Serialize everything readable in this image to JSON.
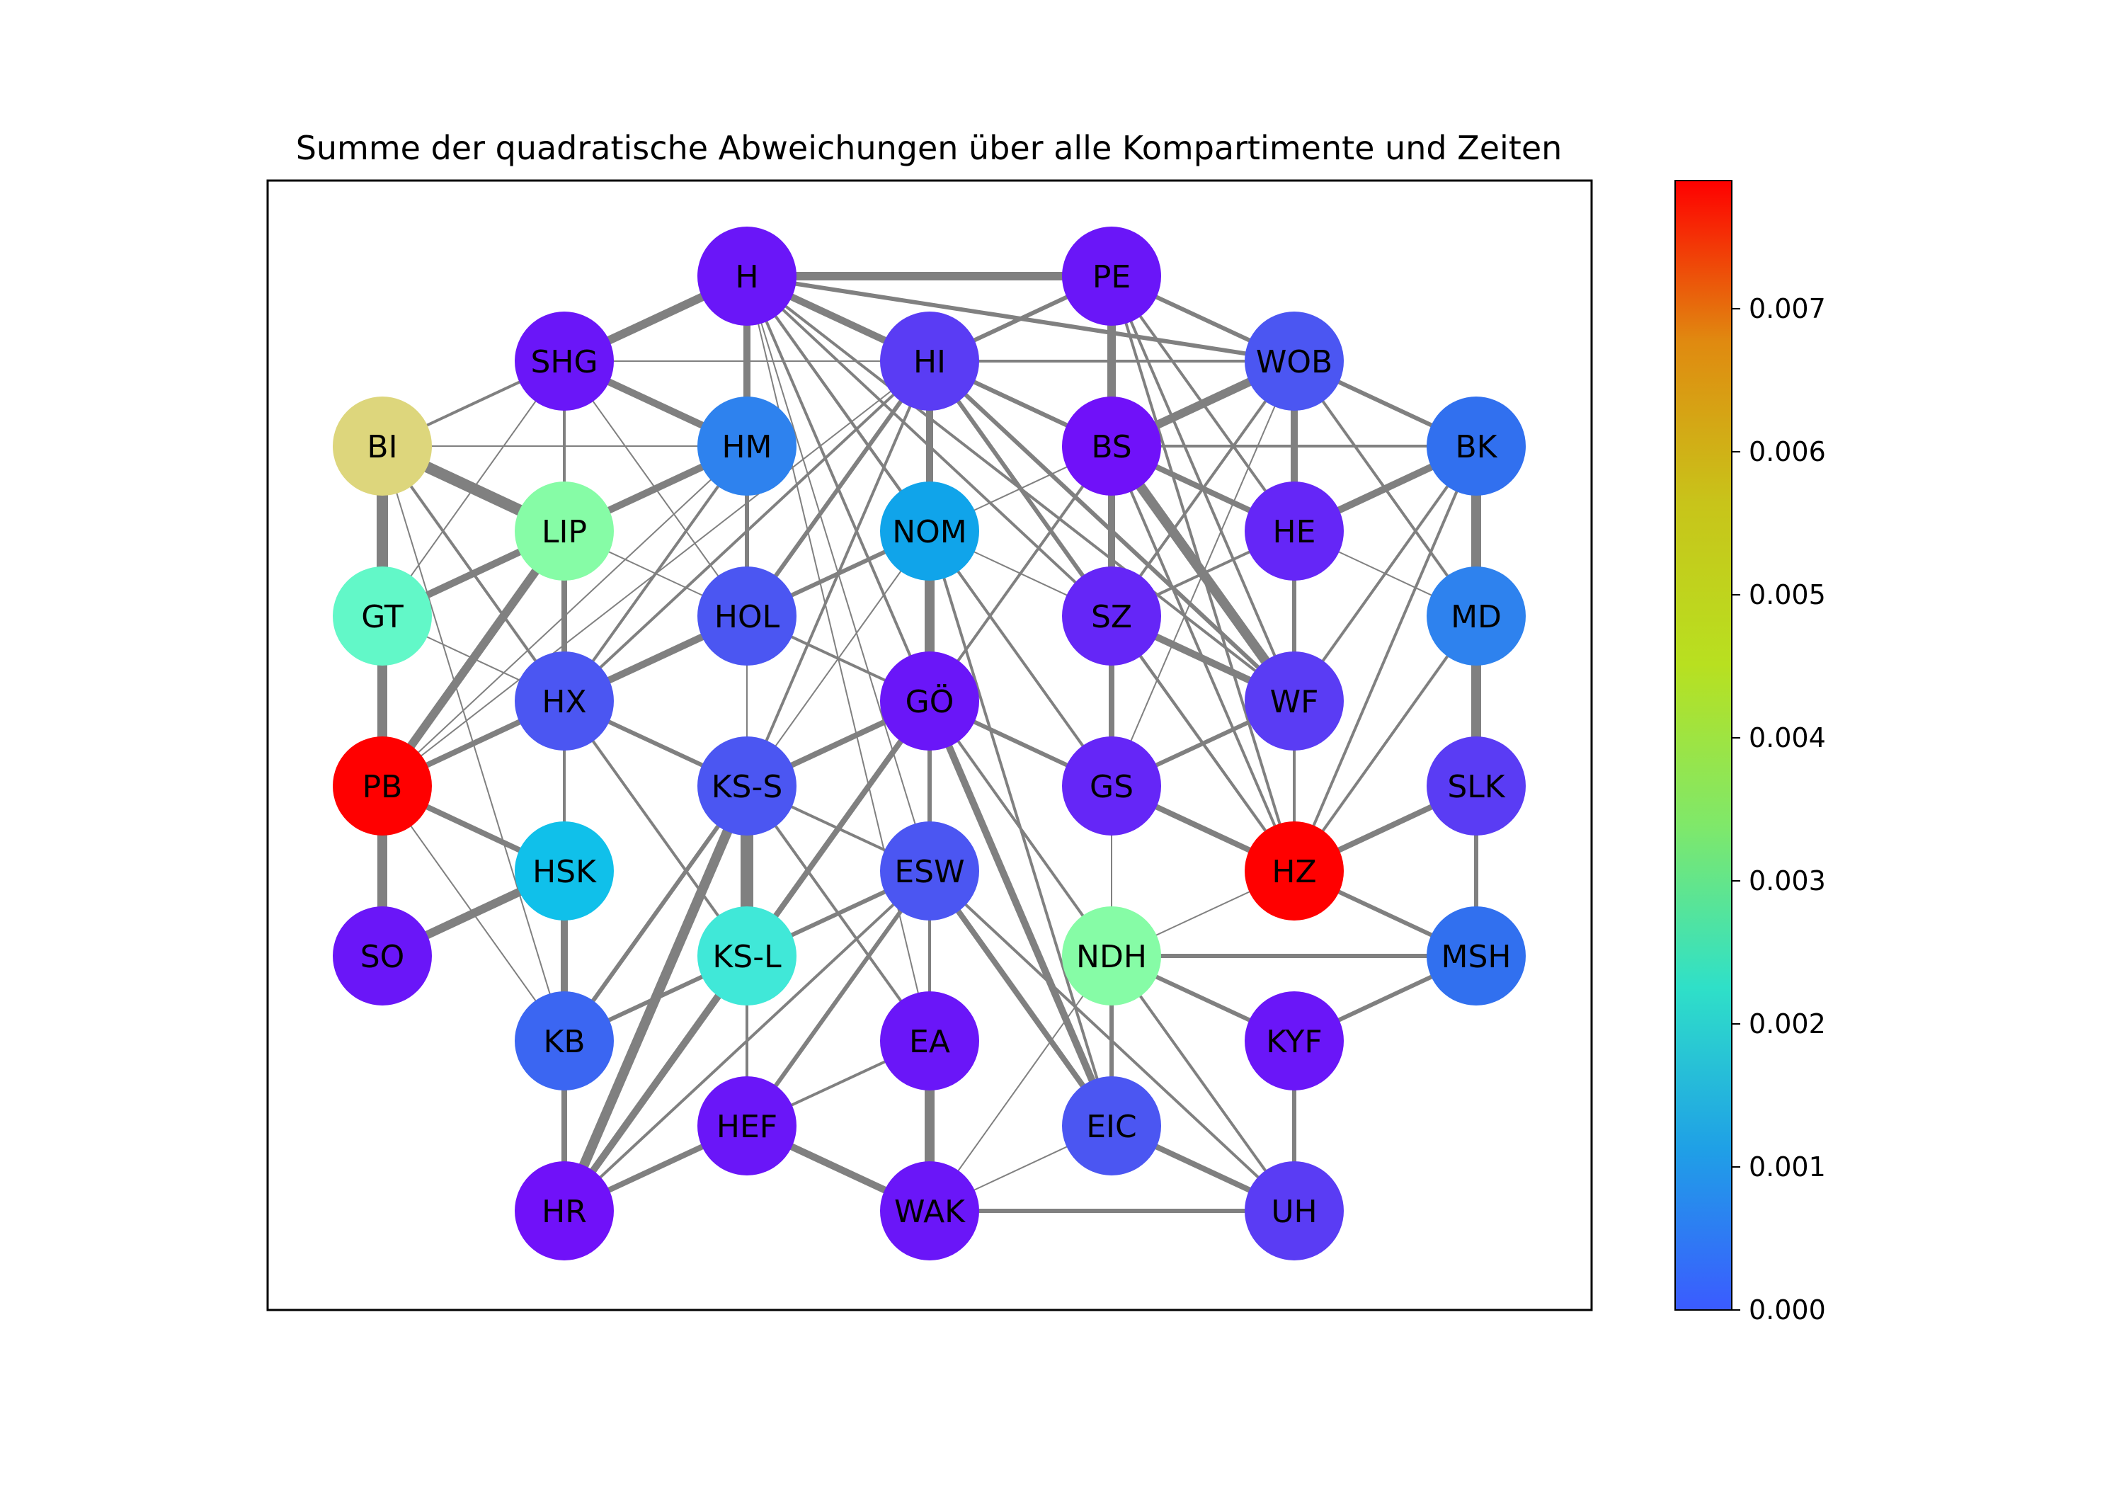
{
  "title": "Summe der quadratische Abweichungen über alle Kompartimente und Zeiten",
  "colorbar": {
    "ticks": [
      "0.000",
      "0.001",
      "0.002",
      "0.003",
      "0.004",
      "0.005",
      "0.006",
      "0.007"
    ],
    "colors": [
      "#3b5bff",
      "#1fa0e6",
      "#2fe0c8",
      "#7fe86a",
      "#b8e020",
      "#c8c41a",
      "#e08a10",
      "#ff0000"
    ]
  },
  "nodes": [
    {
      "id": "H",
      "color": "#6a16f8"
    },
    {
      "id": "PE",
      "color": "#6a16f8"
    },
    {
      "id": "SHG",
      "color": "#6a16f8"
    },
    {
      "id": "HI",
      "color": "#5a3cf4"
    },
    {
      "id": "WOB",
      "color": "#4b56f2"
    },
    {
      "id": "BI",
      "color": "#ddd67c"
    },
    {
      "id": "HM",
      "color": "#2e82ee"
    },
    {
      "id": "BS",
      "color": "#7011f9"
    },
    {
      "id": "BK",
      "color": "#3170ef"
    },
    {
      "id": "LIP",
      "color": "#86fca6"
    },
    {
      "id": "NOM",
      "color": "#10a4ea"
    },
    {
      "id": "HE",
      "color": "#6526f7"
    },
    {
      "id": "GT",
      "color": "#62f8c8"
    },
    {
      "id": "HOL",
      "color": "#4b56f2"
    },
    {
      "id": "SZ",
      "color": "#6526f7"
    },
    {
      "id": "MD",
      "color": "#2e82ee"
    },
    {
      "id": "HX",
      "color": "#4b56f2"
    },
    {
      "id": "GÖ",
      "color": "#6a16f8"
    },
    {
      "id": "WF",
      "color": "#5a3cf4"
    },
    {
      "id": "PB",
      "color": "#ff0000"
    },
    {
      "id": "KS-S",
      "color": "#4b56f2"
    },
    {
      "id": "GS",
      "color": "#6526f7"
    },
    {
      "id": "SLK",
      "color": "#5a3cf4"
    },
    {
      "id": "HSK",
      "color": "#10c0ea"
    },
    {
      "id": "ESW",
      "color": "#4b56f2"
    },
    {
      "id": "HZ",
      "color": "#ff0000"
    },
    {
      "id": "SO",
      "color": "#6a16f8"
    },
    {
      "id": "KS-L",
      "color": "#40e8d8"
    },
    {
      "id": "NDH",
      "color": "#86fca6"
    },
    {
      "id": "MSH",
      "color": "#3170ef"
    },
    {
      "id": "KB",
      "color": "#3b66f2"
    },
    {
      "id": "EA",
      "color": "#6a16f8"
    },
    {
      "id": "KYF",
      "color": "#6a16f8"
    },
    {
      "id": "HEF",
      "color": "#6a16f8"
    },
    {
      "id": "EIC",
      "color": "#4b56f2"
    },
    {
      "id": "HR",
      "color": "#7011f9"
    },
    {
      "id": "WAK",
      "color": "#6a16f8"
    },
    {
      "id": "UH",
      "color": "#5a3cf4"
    }
  ],
  "edges": [
    [
      "H",
      "PE",
      12
    ],
    [
      "H",
      "SHG",
      12
    ],
    [
      "H",
      "HM",
      10
    ],
    [
      "H",
      "HI",
      10
    ],
    [
      "H",
      "BS",
      6
    ],
    [
      "H",
      "WOB",
      6
    ],
    [
      "H",
      "SZ",
      4
    ],
    [
      "H",
      "WF",
      4
    ],
    [
      "H",
      "HE",
      4
    ],
    [
      "H",
      "GS",
      4
    ],
    [
      "H",
      "NOM",
      4
    ],
    [
      "H",
      "GÖ",
      4
    ],
    [
      "H",
      "HOL",
      2
    ],
    [
      "H",
      "ESW",
      2
    ],
    [
      "H",
      "KS-L",
      2
    ],
    [
      "H",
      "EA",
      2
    ],
    [
      "PE",
      "BS",
      12
    ],
    [
      "PE",
      "WOB",
      6
    ],
    [
      "PE",
      "HI",
      6
    ],
    [
      "PE",
      "HE",
      4
    ],
    [
      "PE",
      "WF",
      4
    ],
    [
      "PE",
      "HZ",
      4
    ],
    [
      "SHG",
      "HM",
      10
    ],
    [
      "SHG",
      "LIP",
      4
    ],
    [
      "SHG",
      "WOB",
      2
    ],
    [
      "SHG",
      "HOL",
      2
    ],
    [
      "SHG",
      "GT",
      2
    ],
    [
      "HI",
      "WOB",
      4
    ],
    [
      "HI",
      "BS",
      6
    ],
    [
      "HI",
      "SZ",
      6
    ],
    [
      "HI",
      "WF",
      6
    ],
    [
      "HI",
      "GÖ",
      10
    ],
    [
      "HI",
      "HZ",
      4
    ],
    [
      "HI",
      "HOL",
      6
    ],
    [
      "HI",
      "HX",
      4
    ],
    [
      "HI",
      "NOM",
      2
    ],
    [
      "HI",
      "KS-S",
      4
    ],
    [
      "HI",
      "PB",
      2
    ],
    [
      "WOB",
      "BS",
      12
    ],
    [
      "WOB",
      "HE",
      10
    ],
    [
      "WOB",
      "BK",
      6
    ],
    [
      "WOB",
      "MD",
      4
    ],
    [
      "WOB",
      "SZ",
      4
    ],
    [
      "WOB",
      "GS",
      2
    ],
    [
      "BI",
      "LIP",
      16
    ],
    [
      "BI",
      "GT",
      16
    ],
    [
      "BI",
      "SHG",
      4
    ],
    [
      "BI",
      "HM",
      2
    ],
    [
      "BI",
      "HX",
      4
    ],
    [
      "BI",
      "KB",
      2
    ],
    [
      "HM",
      "LIP",
      10
    ],
    [
      "HM",
      "HOL",
      6
    ],
    [
      "HM",
      "HX",
      4
    ],
    [
      "HM",
      "PB",
      2
    ],
    [
      "HM",
      "GT",
      2
    ],
    [
      "BS",
      "HE",
      8
    ],
    [
      "BS",
      "WF",
      14
    ],
    [
      "BS",
      "SZ",
      10
    ],
    [
      "BS",
      "BK",
      4
    ],
    [
      "BS",
      "GS",
      6
    ],
    [
      "BS",
      "HZ",
      4
    ],
    [
      "BS",
      "KS-L",
      4
    ],
    [
      "BK",
      "HE",
      10
    ],
    [
      "BK",
      "MD",
      14
    ],
    [
      "BK",
      "HZ",
      4
    ],
    [
      "BK",
      "WF",
      4
    ],
    [
      "LIP",
      "GT",
      10
    ],
    [
      "LIP",
      "PB",
      12
    ],
    [
      "LIP",
      "HX",
      8
    ],
    [
      "LIP",
      "HOL",
      2
    ],
    [
      "NOM",
      "GÖ",
      14
    ],
    [
      "NOM",
      "HOL",
      6
    ],
    [
      "NOM",
      "SZ",
      2
    ],
    [
      "NOM",
      "EIC",
      4
    ],
    [
      "NOM",
      "ESW",
      4
    ],
    [
      "NOM",
      "BS",
      2
    ],
    [
      "NOM",
      "KS-S",
      2
    ],
    [
      "HE",
      "WF",
      6
    ],
    [
      "HE",
      "SZ",
      4
    ],
    [
      "HE",
      "MD",
      2
    ],
    [
      "HE",
      "HZ",
      2
    ],
    [
      "GT",
      "PB",
      14
    ],
    [
      "GT",
      "HX",
      2
    ],
    [
      "HOL",
      "HX",
      10
    ],
    [
      "HOL",
      "KS-S",
      2
    ],
    [
      "HOL",
      "GÖ",
      4
    ],
    [
      "SZ",
      "GS",
      8
    ],
    [
      "SZ",
      "WF",
      10
    ],
    [
      "SZ",
      "HZ",
      4
    ],
    [
      "MD",
      "SLK",
      14
    ],
    [
      "MD",
      "HZ",
      4
    ],
    [
      "HX",
      "PB",
      8
    ],
    [
      "HX",
      "HSK",
      4
    ],
    [
      "HX",
      "KS-S",
      6
    ],
    [
      "HX",
      "KS-L",
      4
    ],
    [
      "GÖ",
      "KS-S",
      8
    ],
    [
      "GÖ",
      "ESW",
      6
    ],
    [
      "GÖ",
      "GS",
      6
    ],
    [
      "GÖ",
      "EIC",
      10
    ],
    [
      "GÖ",
      "KS-L",
      6
    ],
    [
      "GÖ",
      "NDH",
      4
    ],
    [
      "GÖ",
      "HR",
      8
    ],
    [
      "WF",
      "GS",
      6
    ],
    [
      "WF",
      "HZ",
      4
    ],
    [
      "PB",
      "HSK",
      8
    ],
    [
      "PB",
      "SO",
      14
    ],
    [
      "PB",
      "KB",
      2
    ],
    [
      "KS-S",
      "KS-L",
      18
    ],
    [
      "KS-S",
      "ESW",
      4
    ],
    [
      "KS-S",
      "HR",
      14
    ],
    [
      "KS-S",
      "KB",
      6
    ],
    [
      "KS-S",
      "EA",
      4
    ],
    [
      "GS",
      "NDH",
      2
    ],
    [
      "GS",
      "HZ",
      8
    ],
    [
      "SLK",
      "MSH",
      6
    ],
    [
      "SLK",
      "HZ",
      8
    ],
    [
      "HSK",
      "SO",
      12
    ],
    [
      "HSK",
      "KB",
      10
    ],
    [
      "ESW",
      "KS-L",
      6
    ],
    [
      "ESW",
      "EA",
      4
    ],
    [
      "ESW",
      "HEF",
      6
    ],
    [
      "ESW",
      "EIC",
      8
    ],
    [
      "ESW",
      "HR",
      4
    ],
    [
      "ESW",
      "UH",
      4
    ],
    [
      "HZ",
      "MSH",
      6
    ],
    [
      "KS-L",
      "HR",
      10
    ],
    [
      "KS-L",
      "HEF",
      4
    ],
    [
      "KS-L",
      "KB",
      6
    ],
    [
      "NDH",
      "MSH",
      6
    ],
    [
      "NDH",
      "KYF",
      6
    ],
    [
      "NDH",
      "HZ",
      2
    ],
    [
      "NDH",
      "EIC",
      6
    ],
    [
      "NDH",
      "UH",
      4
    ],
    [
      "NDH",
      "WAK",
      2
    ],
    [
      "MSH",
      "KYF",
      6
    ],
    [
      "KB",
      "HR",
      8
    ],
    [
      "EA",
      "WAK",
      14
    ],
    [
      "EA",
      "HEF",
      4
    ],
    [
      "KYF",
      "UH",
      6
    ],
    [
      "HEF",
      "HR",
      8
    ],
    [
      "HEF",
      "WAK",
      10
    ],
    [
      "EIC",
      "UH",
      8
    ],
    [
      "EIC",
      "WAK",
      2
    ],
    [
      "HR",
      "KS-L",
      6
    ],
    [
      "WAK",
      "UH",
      6
    ]
  ]
}
